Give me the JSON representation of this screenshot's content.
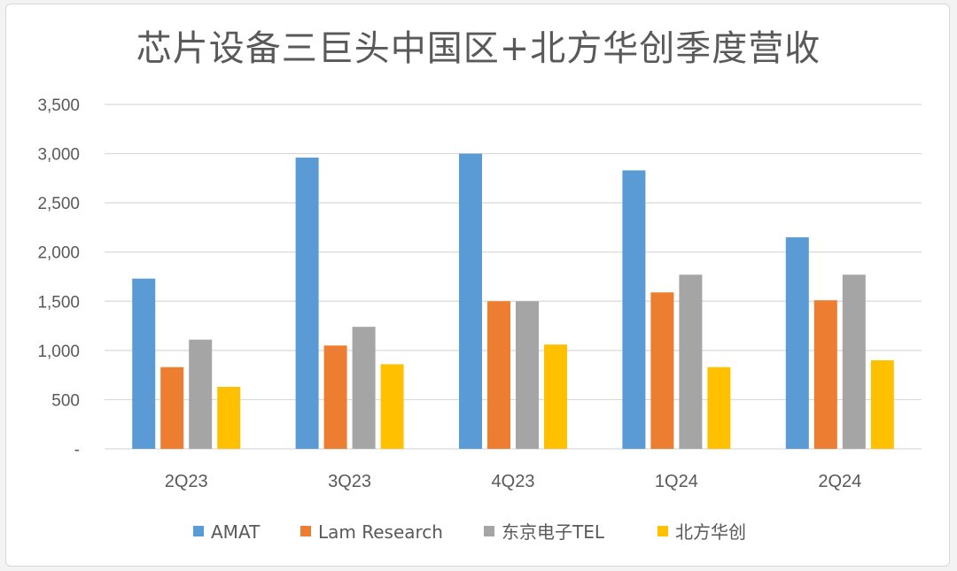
{
  "chart_data": {
    "type": "bar",
    "title": "芯片设备三巨头中国区+北方华创季度营收",
    "categories": [
      "2Q23",
      "3Q23",
      "4Q23",
      "1Q24",
      "2Q24"
    ],
    "series": [
      {
        "name": "AMAT",
        "color": "#5b9bd5",
        "values": [
          1730,
          2960,
          3000,
          2830,
          2150
        ]
      },
      {
        "name": "Lam Research",
        "color": "#ed7d31",
        "values": [
          830,
          1050,
          1500,
          1590,
          1510
        ]
      },
      {
        "name": "东京电子TEL",
        "color": "#a5a5a5",
        "values": [
          1110,
          1240,
          1500,
          1770,
          1770
        ]
      },
      {
        "name": "北方华创",
        "color": "#ffc000",
        "values": [
          630,
          860,
          1060,
          830,
          900
        ]
      }
    ],
    "yticks": [
      {
        "value": 0,
        "label": "-"
      },
      {
        "value": 500,
        "label": "500"
      },
      {
        "value": 1000,
        "label": "1,000"
      },
      {
        "value": 1500,
        "label": "1,500"
      },
      {
        "value": 2000,
        "label": "2,000"
      },
      {
        "value": 2500,
        "label": "2,500"
      },
      {
        "value": 3000,
        "label": "3,000"
      },
      {
        "value": 3500,
        "label": "3,500"
      }
    ],
    "ylim": [
      0,
      3500
    ],
    "grid": true,
    "legend": "bottom"
  }
}
